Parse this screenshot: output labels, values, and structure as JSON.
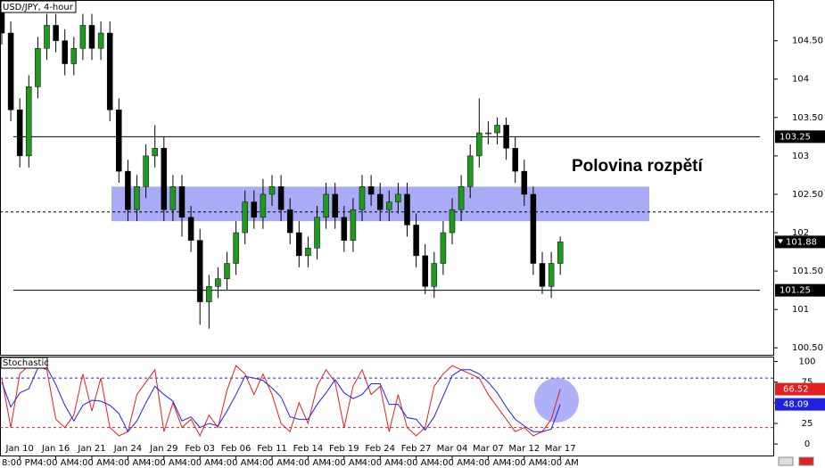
{
  "chart_data": [
    {
      "type": "candlestick",
      "title": "USD/JPY, 4-hour",
      "open": [
        104.9,
        104.6,
        103.6,
        103.0,
        103.9,
        104.4,
        104.7,
        104.5,
        104.2,
        104.4,
        104.7,
        104.4,
        104.6,
        103.6,
        102.8,
        102.3,
        102.6,
        103.0,
        103.1,
        102.3,
        102.6,
        102.2,
        101.9,
        101.1,
        101.3,
        101.4,
        101.6,
        102.0,
        102.4,
        102.2,
        102.5,
        102.6,
        102.3,
        102.0,
        101.7,
        101.8,
        102.2,
        102.5,
        102.2,
        101.9,
        102.3,
        102.6,
        102.5,
        102.3,
        102.4,
        102.5,
        102.1,
        101.7,
        101.3,
        101.6,
        102.0,
        102.3,
        102.6,
        103.0,
        103.3,
        103.3,
        103.4,
        103.1,
        102.8,
        102.5,
        101.6,
        101.3,
        101.6
      ],
      "high": [
        105.0,
        104.75,
        103.75,
        104.05,
        104.55,
        104.85,
        104.85,
        104.65,
        104.55,
        104.85,
        104.85,
        104.75,
        104.75,
        103.75,
        102.95,
        102.75,
        103.15,
        103.4,
        103.25,
        102.75,
        102.75,
        102.35,
        102.05,
        101.45,
        101.55,
        101.75,
        102.15,
        102.55,
        102.55,
        102.7,
        102.75,
        102.75,
        102.45,
        102.15,
        101.95,
        102.35,
        102.65,
        102.65,
        102.35,
        102.45,
        102.75,
        102.75,
        102.65,
        102.55,
        102.65,
        102.65,
        102.25,
        101.85,
        101.75,
        102.15,
        102.45,
        102.75,
        103.15,
        103.75,
        103.45,
        103.5,
        103.5,
        103.25,
        102.95,
        102.6,
        101.75,
        101.75,
        101.95
      ],
      "low": [
        104.45,
        103.45,
        102.85,
        102.85,
        103.75,
        104.25,
        104.35,
        104.05,
        104.05,
        104.25,
        104.25,
        104.25,
        103.45,
        102.65,
        102.15,
        102.15,
        102.45,
        102.85,
        102.15,
        102.15,
        101.95,
        101.75,
        100.8,
        100.75,
        101.15,
        101.25,
        101.45,
        101.85,
        102.05,
        102.05,
        102.35,
        102.15,
        101.85,
        101.55,
        101.55,
        101.65,
        102.05,
        102.05,
        101.75,
        101.75,
        102.15,
        102.35,
        102.15,
        102.15,
        102.25,
        101.95,
        101.55,
        101.2,
        101.15,
        101.45,
        101.85,
        102.15,
        102.45,
        102.85,
        103.15,
        103.15,
        102.95,
        102.65,
        102.35,
        101.45,
        101.2,
        101.15,
        101.45
      ],
      "close": [
        104.6,
        103.6,
        103.0,
        103.9,
        104.4,
        104.7,
        104.5,
        104.2,
        104.4,
        104.7,
        104.4,
        104.6,
        103.6,
        102.8,
        102.3,
        102.6,
        103.0,
        103.1,
        102.3,
        102.6,
        102.2,
        101.9,
        101.1,
        101.3,
        101.4,
        101.6,
        102.0,
        102.4,
        102.2,
        102.5,
        102.6,
        102.3,
        102.0,
        101.7,
        101.8,
        102.2,
        102.5,
        102.2,
        101.9,
        102.3,
        102.6,
        102.5,
        102.3,
        102.4,
        102.5,
        102.1,
        101.7,
        101.3,
        101.6,
        102.0,
        102.3,
        102.6,
        103.0,
        103.3,
        103.3,
        103.4,
        103.1,
        102.8,
        102.5,
        101.6,
        101.3,
        101.6,
        101.88
      ],
      "up_color": "#1f9a1f",
      "down_color": "#000000",
      "ylim": [
        100.41,
        105.03
      ],
      "yticks": [
        {
          "value": 100.5,
          "label": "100.50"
        },
        101,
        {
          "value": 101.5,
          "label": "101.50"
        },
        102,
        {
          "value": 102.5,
          "label": "102.50"
        },
        103,
        {
          "value": 103.5,
          "label": "103.50"
        },
        104,
        {
          "value": 104.5,
          "label": "104.50"
        }
      ],
      "levels": [
        103.25,
        101.25
      ],
      "midline": 102.27,
      "band": [
        102.15,
        102.6
      ],
      "band_color": "#9a9cf6",
      "annotation": "Polovina rozpětí"
    },
    {
      "type": "line",
      "title": "Stochastic",
      "categories": [
        null,
        null,
        "Jan 10",
        null,
        null,
        null,
        "Jan 16",
        null,
        null,
        null,
        "Jan 21",
        null,
        null,
        null,
        "Jan 24",
        null,
        null,
        null,
        "Jan 29",
        null,
        null,
        null,
        "Feb 03",
        null,
        null,
        null,
        "Feb 06",
        null,
        null,
        null,
        "Feb 11",
        null,
        null,
        null,
        "Feb 14",
        null,
        null,
        null,
        "Feb 19",
        null,
        null,
        null,
        "Feb 24",
        null,
        null,
        null,
        "Feb 27",
        null,
        null,
        null,
        "Mar 04",
        null,
        null,
        null,
        "Mar 07",
        null,
        null,
        null,
        "Mar 12",
        null,
        null,
        null,
        "Mar 17"
      ],
      "category_times": [
        null,
        null,
        "8:00 PM",
        null,
        null,
        null,
        "4:00 AM",
        null,
        null,
        null,
        "4:00 AM",
        null,
        null,
        null,
        "4:00 AM",
        null,
        null,
        null,
        "4:00 AM",
        null,
        null,
        null,
        "4:00 AM",
        null,
        null,
        null,
        "4:00 AM",
        null,
        null,
        null,
        "4:00 AM",
        null,
        null,
        null,
        "4:00 AM",
        null,
        null,
        null,
        "4:00 AM",
        null,
        null,
        null,
        "4:00 AM",
        null,
        null,
        null,
        "4:00 AM",
        null,
        null,
        null,
        "4:00 AM",
        null,
        null,
        null,
        "4:00 AM",
        null,
        null,
        null,
        "4:00 AM",
        null,
        null,
        null,
        "4:00 AM"
      ],
      "series": [
        {
          "color": "#e02020",
          "values": [
            80,
            20,
            85,
            95,
            95,
            90,
            30,
            20,
            35,
            85,
            40,
            80,
            20,
            10,
            15,
            60,
            75,
            90,
            15,
            50,
            20,
            30,
            10,
            35,
            20,
            65,
            95,
            85,
            60,
            85,
            60,
            25,
            15,
            50,
            25,
            70,
            90,
            75,
            20,
            70,
            90,
            60,
            70,
            15,
            60,
            20,
            10,
            20,
            70,
            85,
            95,
            90,
            85,
            80,
            60,
            45,
            30,
            15,
            20,
            10,
            15,
            30,
            66.52
          ]
        },
        {
          "color": "#2020e0",
          "values": [
            75,
            45,
            62,
            67,
            92,
            93,
            72,
            47,
            28,
            47,
            53,
            52,
            47,
            37,
            15,
            28,
            50,
            70,
            60,
            52,
            28,
            33,
            20,
            25,
            22,
            40,
            60,
            82,
            80,
            77,
            68,
            57,
            33,
            30,
            30,
            48,
            62,
            78,
            62,
            55,
            60,
            73,
            73,
            48,
            48,
            32,
            30,
            17,
            33,
            58,
            83,
            90,
            90,
            85,
            75,
            62,
            45,
            30,
            22,
            15,
            15,
            18,
            48.09
          ]
        }
      ],
      "ylim": [
        -15,
        106
      ],
      "yticks": [
        0,
        25,
        50,
        75,
        100
      ],
      "levels": [
        80,
        20
      ],
      "level_colors": [
        "#2020c0",
        "#e02020"
      ]
    }
  ]
}
